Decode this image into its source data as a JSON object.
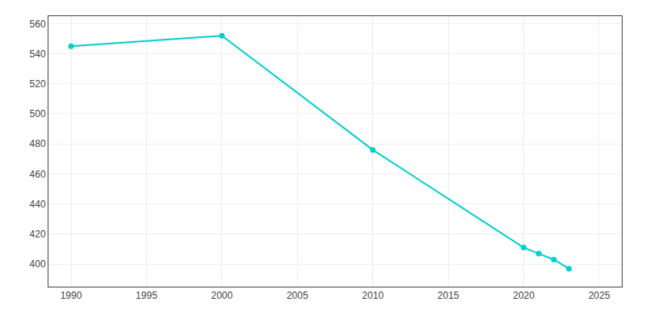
{
  "chart_data": {
    "type": "line",
    "x": [
      1990,
      2000,
      2010,
      2020,
      2021,
      2022,
      2023
    ],
    "values": [
      545,
      552,
      476,
      411,
      407,
      403,
      397
    ],
    "color": "#00CED1",
    "marker": "circle",
    "xlim": [
      1988.5,
      2026.5
    ],
    "ylim": [
      385,
      565
    ],
    "xticks": [
      1990,
      1995,
      2000,
      2005,
      2010,
      2015,
      2020,
      2025
    ],
    "yticks": [
      400,
      420,
      440,
      460,
      480,
      500,
      520,
      540,
      560
    ],
    "grid": true
  }
}
